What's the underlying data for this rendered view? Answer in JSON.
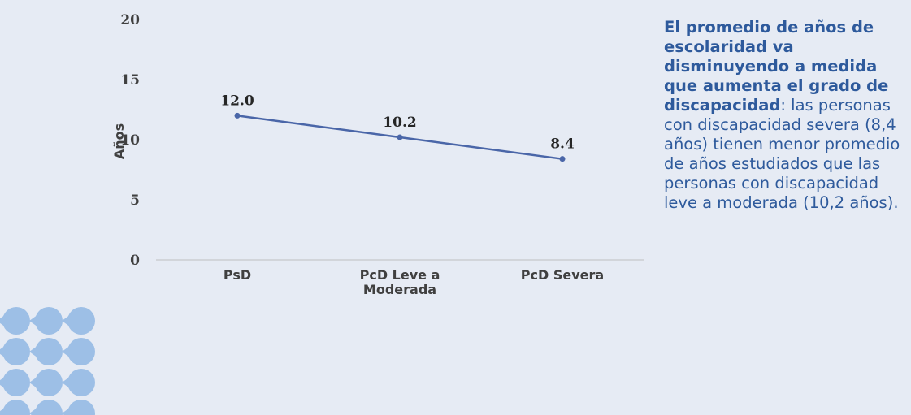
{
  "chart_data": {
    "type": "line",
    "categories": [
      "PsD",
      "PcD Leve a Moderada",
      "PcD Severa"
    ],
    "category_lines": [
      [
        "PsD"
      ],
      [
        "PcD Leve a",
        "Moderada"
      ],
      [
        "PcD Severa"
      ]
    ],
    "series": [
      {
        "values": [
          12.0,
          10.2,
          8.4
        ],
        "color": "#4a66a8"
      }
    ],
    "data_labels": [
      "12.0",
      "10.2",
      "8.4"
    ],
    "ylabel": "Años",
    "ylim": [
      0,
      20
    ],
    "yticks": [
      0,
      5,
      10,
      15,
      20
    ],
    "grid": false,
    "legend": "none"
  },
  "side_text": {
    "bold": "El promedio de años de escolaridad va disminuyendo a medida que aumenta el grado de discapacidad",
    "rest": ": las personas con discapacidad severa (8,4 años) tienen menor promedio de años estudiados que las personas con discapacidad leve a moderada (10,2 años)."
  },
  "colors": {
    "background": "#e6ebf4",
    "line": "#4a66a8",
    "text_accent": "#2e5a9c",
    "decoration": "#9dbfe6"
  }
}
